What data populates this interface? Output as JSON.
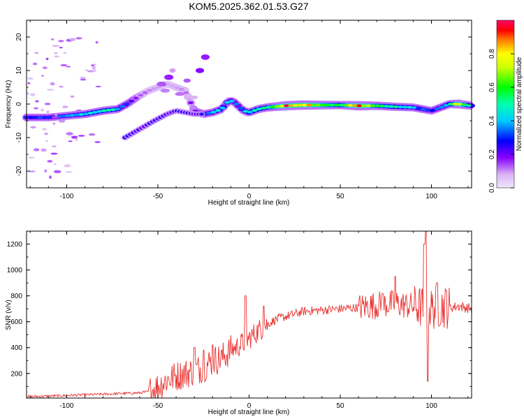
{
  "chart_data": [
    {
      "type": "heatmap",
      "title": "KOM5.2025.362.01.53.G27",
      "xlabel": "Height of straight line (km)",
      "ylabel": "Frequency (Hz)",
      "xlim": [
        -122,
        122
      ],
      "ylim": [
        -25,
        25
      ],
      "x_ticks": [
        -100,
        -50,
        0,
        50,
        100
      ],
      "y_ticks": [
        -20,
        -10,
        0,
        10,
        20
      ],
      "colorbar": {
        "label": "Normalized spectral amplitude",
        "range": [
          0,
          1
        ],
        "ticks": [
          "0.0",
          "0.2",
          "0.4",
          "0.6",
          "0.8"
        ],
        "tick_values": [
          0.0,
          0.2,
          0.4,
          0.6,
          0.8
        ]
      },
      "ridge": {
        "x": [
          -122,
          -110,
          -100,
          -90,
          -80,
          -72,
          -67,
          -60,
          -55,
          -50,
          -45,
          -40,
          -35,
          -30,
          -25,
          -20,
          -15,
          -12,
          -10,
          -8,
          -6,
          -3,
          0,
          5,
          10,
          20,
          30,
          40,
          50,
          60,
          70,
          80,
          90,
          95,
          100,
          105,
          110,
          115,
          122
        ],
        "freq": [
          -4,
          -4,
          -3.5,
          -3,
          -2,
          -1.5,
          0,
          2.5,
          4,
          5,
          6,
          5,
          4,
          -2,
          -3,
          -2.5,
          -1.5,
          0.5,
          1,
          0.5,
          -0.5,
          -2,
          -2.5,
          -1.5,
          -1,
          -0.5,
          -0.3,
          -0.3,
          -0.3,
          -0.5,
          -0.5,
          -0.8,
          -1,
          -1.5,
          -2,
          -1,
          0,
          0,
          -0.5
        ],
        "amplitude": [
          0.3,
          0.3,
          0.35,
          0.45,
          0.5,
          0.45,
          0.3,
          0.15,
          0.1,
          0.1,
          0.1,
          0.1,
          0.12,
          0.2,
          0.35,
          0.4,
          0.45,
          0.45,
          0.4,
          0.35,
          0.35,
          0.45,
          0.5,
          0.5,
          0.55,
          0.9,
          0.95,
          0.7,
          0.55,
          0.95,
          0.6,
          0.5,
          0.4,
          0.35,
          0.3,
          0.35,
          0.5,
          0.8,
          0.45
        ]
      },
      "secondary_branch": {
        "x": [
          -68,
          -60,
          -52,
          -45,
          -40,
          -35,
          -30,
          -25
        ],
        "freq": [
          -10,
          -7.5,
          -5,
          -3,
          -2,
          -2.5,
          -3,
          -3
        ]
      }
    },
    {
      "type": "line",
      "xlabel": "Height of straight line (km)",
      "ylabel": "SNR (v/v)",
      "xlim": [
        -122,
        122
      ],
      "ylim": [
        10,
        1300
      ],
      "x_ticks": [
        -100,
        -50,
        0,
        50,
        100
      ],
      "y_ticks": [
        200,
        400,
        600,
        800,
        1000,
        1200
      ],
      "color": "#e8312f",
      "envelope": {
        "x": [
          -122,
          -110,
          -100,
          -90,
          -80,
          -70,
          -60,
          -55,
          -50,
          -45,
          -40,
          -35,
          -30,
          -25,
          -20,
          -15,
          -10,
          -5,
          0,
          5,
          10,
          15,
          20,
          25,
          30,
          40,
          50,
          60,
          65,
          70,
          75,
          80,
          85,
          90,
          95,
          100,
          105,
          110,
          115,
          122
        ],
        "y": [
          20,
          25,
          30,
          35,
          40,
          45,
          50,
          60,
          100,
          150,
          180,
          200,
          220,
          250,
          300,
          320,
          380,
          420,
          470,
          530,
          580,
          620,
          640,
          660,
          680,
          690,
          700,
          710,
          720,
          730,
          735,
          740,
          730,
          720,
          710,
          700,
          720,
          710,
          720,
          700
        ]
      },
      "peaks": {
        "x": [
          -30,
          -25,
          -20,
          -15,
          -2,
          8,
          73,
          80,
          96,
          97,
          98,
          103,
          108
        ],
        "y": [
          400,
          380,
          420,
          380,
          800,
          720,
          820,
          950,
          1200,
          1300,
          140,
          900,
          840
        ]
      }
    }
  ]
}
